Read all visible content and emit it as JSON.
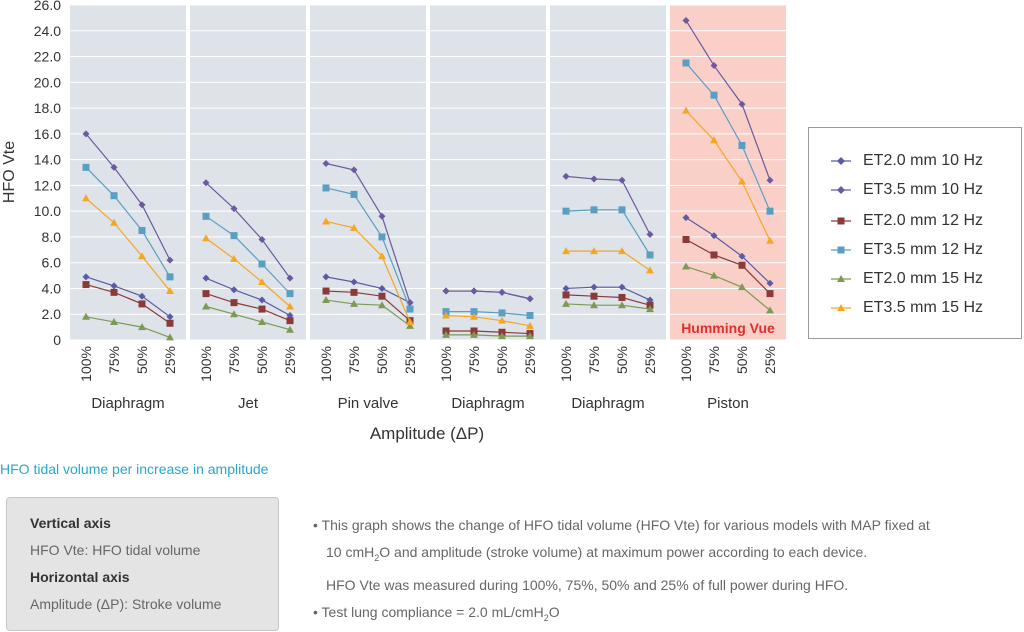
{
  "chart_data": {
    "type": "line",
    "ylabel": "HFO Vte",
    "xlabel": "Amplitude (ΔP)",
    "ylim": [
      0,
      26
    ],
    "yticks": [
      "0",
      "2.0",
      "4.0",
      "6.0",
      "8.0",
      "10.0",
      "12.0",
      "14.0",
      "16.0",
      "18.0",
      "20.0",
      "22.0",
      "24.0",
      "26.0"
    ],
    "categories": [
      "100%",
      "75%",
      "50%",
      "25%"
    ],
    "series_styles": [
      {
        "name": "ET2.0 mm 10 Hz",
        "color": "#5a5aa6",
        "marker": "diamond"
      },
      {
        "name": "ET3.5 mm 10 Hz",
        "color": "#6b5b9e",
        "marker": "diamond"
      },
      {
        "name": "ET2.0 mm 12 Hz",
        "color": "#8b3a3a",
        "marker": "square"
      },
      {
        "name": "ET3.5 mm 12 Hz",
        "color": "#5a9ec1",
        "marker": "square"
      },
      {
        "name": "ET2.0 mm 15 Hz",
        "color": "#7d9a55",
        "marker": "triangle"
      },
      {
        "name": "ET3.5 mm 15 Hz",
        "color": "#f5a623",
        "marker": "triangle"
      }
    ],
    "panels": [
      {
        "label": "Diaphragm",
        "highlight": false,
        "series": [
          [
            4.9,
            4.2,
            3.4,
            1.8
          ],
          [
            16.0,
            13.4,
            10.5,
            6.2
          ],
          [
            4.3,
            3.7,
            2.8,
            1.3
          ],
          [
            13.4,
            11.2,
            8.5,
            4.9
          ],
          [
            1.8,
            1.4,
            1.0,
            0.2
          ],
          [
            11.0,
            9.1,
            6.5,
            3.8
          ]
        ]
      },
      {
        "label": "Jet",
        "highlight": false,
        "series": [
          [
            4.8,
            3.9,
            3.1,
            1.9
          ],
          [
            12.2,
            10.2,
            7.8,
            4.8
          ],
          [
            3.6,
            2.9,
            2.4,
            1.5
          ],
          [
            9.6,
            8.1,
            5.9,
            3.6
          ],
          [
            2.6,
            2.0,
            1.4,
            0.8
          ],
          [
            7.9,
            6.3,
            4.5,
            2.6
          ]
        ]
      },
      {
        "label": "Pin valve",
        "highlight": false,
        "series": [
          [
            4.9,
            4.5,
            4.0,
            2.9
          ],
          [
            13.7,
            13.2,
            9.6,
            2.9
          ],
          [
            3.8,
            3.7,
            3.4,
            1.5
          ],
          [
            11.8,
            11.3,
            8.0,
            2.4
          ],
          [
            3.1,
            2.8,
            2.7,
            1.1
          ],
          [
            9.2,
            8.7,
            6.5,
            1.4
          ]
        ]
      },
      {
        "label": "Diaphragm",
        "highlight": false,
        "series": [
          [
            3.8,
            3.8,
            3.7,
            3.2
          ],
          [
            3.8,
            3.8,
            3.7,
            3.2
          ],
          [
            0.7,
            0.7,
            0.6,
            0.5
          ],
          [
            2.2,
            2.2,
            2.1,
            1.9
          ],
          [
            0.4,
            0.4,
            0.3,
            0.3
          ],
          [
            1.9,
            1.8,
            1.5,
            1.1
          ]
        ]
      },
      {
        "label": "Diaphragm",
        "highlight": false,
        "series": [
          [
            4.0,
            4.1,
            4.1,
            3.1
          ],
          [
            12.7,
            12.5,
            12.4,
            8.2
          ],
          [
            3.5,
            3.4,
            3.3,
            2.7
          ],
          [
            10.0,
            10.1,
            10.1,
            6.6
          ],
          [
            2.8,
            2.7,
            2.7,
            2.4
          ],
          [
            6.9,
            6.9,
            6.9,
            5.4
          ]
        ]
      },
      {
        "label": "Piston",
        "highlight": true,
        "badge": "Humming Vue",
        "series": [
          [
            9.5,
            8.1,
            6.5,
            4.4
          ],
          [
            24.8,
            21.3,
            18.3,
            12.4
          ],
          [
            7.8,
            6.6,
            5.8,
            3.6
          ],
          [
            21.5,
            19.0,
            15.1,
            10.0
          ],
          [
            5.7,
            5.0,
            4.1,
            2.3
          ],
          [
            17.8,
            15.5,
            12.3,
            7.7
          ]
        ]
      }
    ]
  },
  "legend": {
    "items": [
      {
        "label": "ET2.0 mm 10 Hz"
      },
      {
        "label": "ET3.5 mm 10 Hz"
      },
      {
        "label": "ET2.0 mm 12 Hz"
      },
      {
        "label": "ET3.5 mm 12 Hz"
      },
      {
        "label": "ET2.0 mm 15 Hz"
      },
      {
        "label": "ET3.5 mm 15 Hz"
      }
    ]
  },
  "caption": "HFO tidal volume per increase in amplitude",
  "axis_info": {
    "vertical_title": "Vertical axis",
    "vertical_text": "HFO Vte: HFO tidal volume",
    "horizontal_title": "Horizontal axis",
    "horizontal_text": "Amplitude (ΔP): Stroke volume"
  },
  "notes": {
    "line1": "• This graph shows the change of HFO tidal volume (HFO Vte) for various models with MAP fixed at",
    "line2_a": "10 cmH",
    "line2_sub": "2",
    "line2_b": "O and amplitude (stroke volume) at maximum power according to each device.",
    "line3": "HFO Vte was measured during 100%, 75%, 50% and 25% of full power during HFO.",
    "line4_a": "• Test lung compliance = 2.0 mL/cmH",
    "line4_sub": "2",
    "line4_b": "O"
  },
  "colors": {
    "panel_bg": "#dde3e8",
    "highlight_bg": "#f9cfc8",
    "badge_color": "#e0302a",
    "caption_color": "#2aa8c9"
  }
}
